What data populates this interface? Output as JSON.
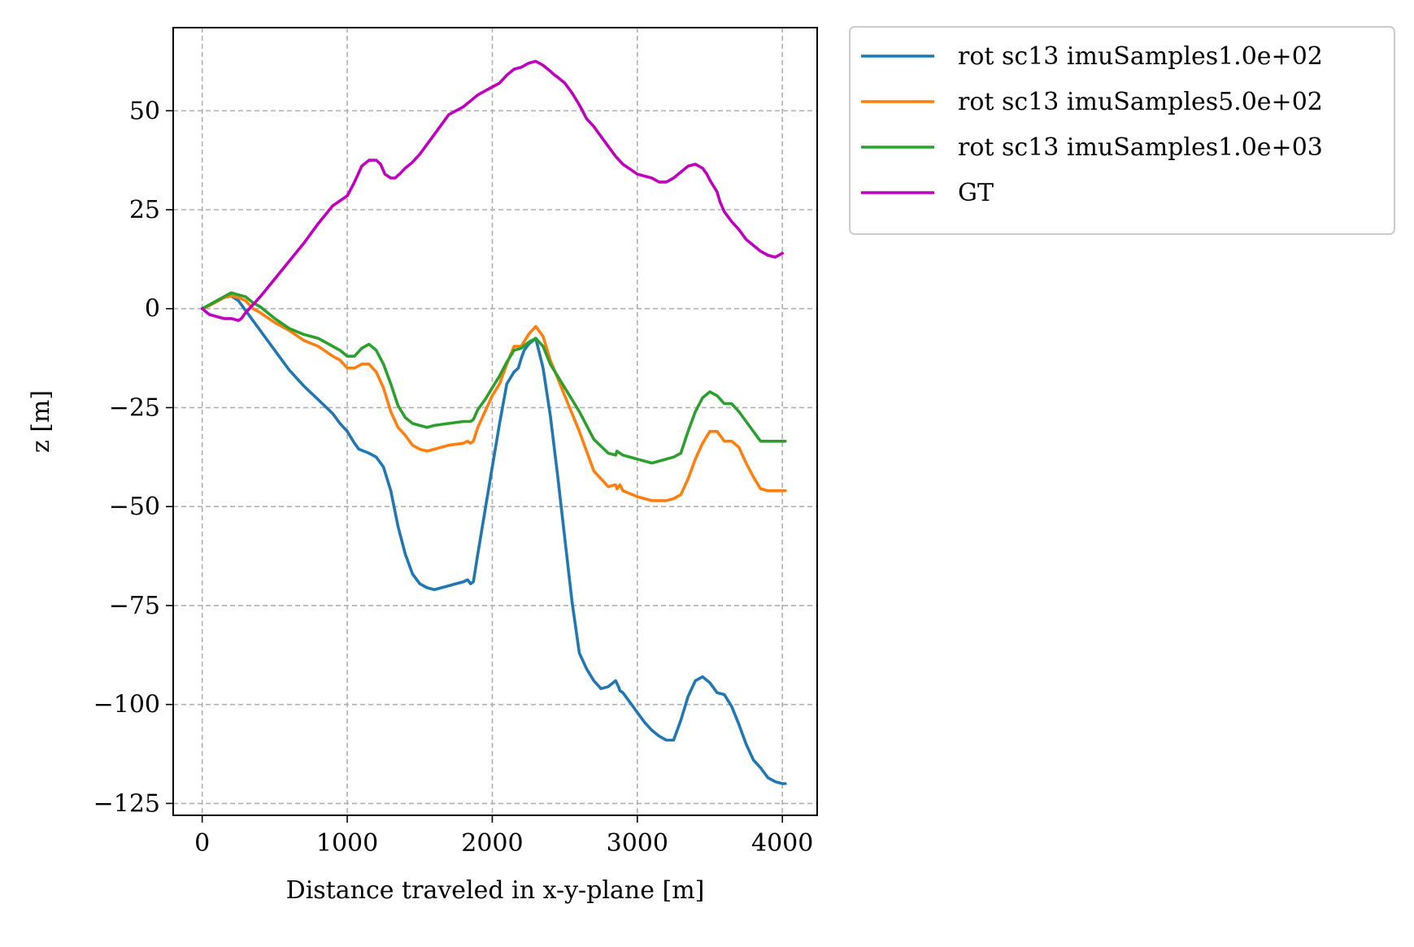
{
  "chart_data": {
    "type": "line",
    "xlabel": "Distance traveled in x-y-plane [m]",
    "ylabel": "z [m]",
    "xlim": [
      -200,
      4240
    ],
    "ylim": [
      -128,
      71
    ],
    "xticks": [
      0,
      1000,
      2000,
      3000,
      4000
    ],
    "yticks": [
      50,
      25,
      0,
      -25,
      -50,
      -75,
      -100,
      -125
    ],
    "ytick_labels": [
      "50",
      "25",
      "0",
      "−25",
      "−50",
      "−75",
      "−100",
      "−125"
    ],
    "grid": true,
    "legend_position": "outside-top-right",
    "series": [
      {
        "name": "rot sc13 imuSamples1.0e+02",
        "color": "#1f77b4",
        "x": [
          0,
          50,
          100,
          150,
          200,
          250,
          300,
          350,
          400,
          500,
          600,
          700,
          800,
          900,
          950,
          1000,
          1050,
          1080,
          1150,
          1200,
          1250,
          1300,
          1350,
          1400,
          1450,
          1500,
          1550,
          1600,
          1650,
          1700,
          1750,
          1800,
          1830,
          1850,
          1870,
          1900,
          1950,
          2000,
          2050,
          2100,
          2150,
          2180,
          2200,
          2220,
          2250,
          2300,
          2350,
          2400,
          2450,
          2500,
          2550,
          2600,
          2650,
          2700,
          2750,
          2800,
          2850,
          2870,
          2880,
          2900,
          2950,
          3000,
          3050,
          3100,
          3150,
          3200,
          3250,
          3300,
          3350,
          3400,
          3450,
          3500,
          3550,
          3600,
          3650,
          3700,
          3750,
          3800,
          3850,
          3900,
          3950,
          4000,
          4020
        ],
        "y": [
          0,
          0.8,
          1.8,
          2.8,
          3.2,
          2,
          -0.5,
          -3,
          -5.5,
          -10.5,
          -15.5,
          -19.5,
          -23,
          -26.5,
          -29,
          -31,
          -34,
          -35.5,
          -36.5,
          -37.5,
          -40,
          -46,
          -55,
          -62,
          -67,
          -69.5,
          -70.5,
          -71,
          -70.5,
          -70,
          -69.5,
          -69,
          -68.5,
          -69.5,
          -69,
          -62,
          -51,
          -40,
          -29,
          -19,
          -16,
          -15,
          -12.5,
          -10.5,
          -9,
          -7.5,
          -15,
          -27,
          -42,
          -58,
          -74,
          -87,
          -91,
          -94,
          -96,
          -95.5,
          -94,
          -95.5,
          -96.5,
          -97,
          -99.5,
          -102,
          -104.5,
          -106.5,
          -108,
          -109,
          -109,
          -104,
          -98,
          -94,
          -93,
          -94.5,
          -97,
          -97.5,
          -100.5,
          -105,
          -110,
          -114,
          -116,
          -118.5,
          -119.5,
          -120,
          -120
        ]
      },
      {
        "name": "rot sc13 imuSamples5.0e+02",
        "color": "#ff7f0e",
        "x": [
          0,
          50,
          100,
          150,
          200,
          250,
          300,
          350,
          400,
          500,
          600,
          700,
          800,
          900,
          950,
          1000,
          1050,
          1100,
          1150,
          1200,
          1250,
          1300,
          1350,
          1400,
          1450,
          1500,
          1550,
          1600,
          1700,
          1800,
          1830,
          1850,
          1870,
          1900,
          1950,
          2000,
          2050,
          2100,
          2150,
          2200,
          2250,
          2300,
          2350,
          2400,
          2500,
          2600,
          2700,
          2800,
          2850,
          2860,
          2880,
          2900,
          3000,
          3100,
          3150,
          3200,
          3250,
          3300,
          3350,
          3400,
          3450,
          3500,
          3550,
          3600,
          3650,
          3700,
          3750,
          3800,
          3850,
          3900,
          3950,
          4000,
          4020
        ],
        "y": [
          0,
          0.8,
          1.8,
          2.8,
          3.2,
          2.8,
          2,
          0,
          -1,
          -3.5,
          -5.5,
          -8,
          -9.5,
          -12,
          -13,
          -15,
          -15,
          -14,
          -14,
          -16,
          -20,
          -26,
          -30,
          -32,
          -34.5,
          -35.5,
          -36,
          -35.5,
          -34.5,
          -34,
          -33.5,
          -34,
          -33.5,
          -30,
          -26,
          -22,
          -19,
          -14,
          -9.5,
          -9.5,
          -6.5,
          -4.5,
          -7,
          -13,
          -22,
          -31,
          -41,
          -45,
          -44.5,
          -45.5,
          -44.5,
          -46,
          -47.5,
          -48.5,
          -48.5,
          -48.5,
          -48,
          -47,
          -43,
          -38,
          -34,
          -31,
          -31,
          -33.5,
          -33.5,
          -35,
          -39,
          -42.5,
          -45.5,
          -46,
          -46,
          -46,
          -46
        ]
      },
      {
        "name": "rot sc13 imuSamples1.0e+03",
        "color": "#2ca02c",
        "x": [
          0,
          50,
          100,
          150,
          200,
          250,
          300,
          350,
          400,
          500,
          600,
          700,
          800,
          900,
          950,
          1000,
          1050,
          1100,
          1150,
          1200,
          1250,
          1300,
          1350,
          1400,
          1450,
          1500,
          1550,
          1600,
          1700,
          1800,
          1830,
          1850,
          1870,
          1900,
          1950,
          2000,
          2050,
          2100,
          2150,
          2200,
          2250,
          2300,
          2350,
          2400,
          2500,
          2600,
          2700,
          2800,
          2850,
          2860,
          2880,
          2900,
          3000,
          3100,
          3150,
          3200,
          3250,
          3300,
          3350,
          3400,
          3450,
          3500,
          3550,
          3600,
          3650,
          3700,
          3750,
          3800,
          3850,
          3900,
          3950,
          4000,
          4020
        ],
        "y": [
          0,
          1,
          2,
          3,
          4,
          3.5,
          3,
          1.5,
          0.5,
          -2.5,
          -5,
          -6.5,
          -7.5,
          -9.5,
          -10.5,
          -12,
          -12,
          -10,
          -9,
          -10.5,
          -14,
          -19,
          -24.5,
          -27.5,
          -29,
          -29.5,
          -30,
          -29.5,
          -29,
          -28.5,
          -28.5,
          -28.5,
          -28,
          -25.5,
          -23,
          -20,
          -17,
          -13.5,
          -10.5,
          -10,
          -8.5,
          -7.5,
          -9.5,
          -14,
          -20,
          -26,
          -33,
          -36.5,
          -37,
          -36,
          -36.5,
          -37,
          -38,
          -39,
          -38.5,
          -38,
          -37.5,
          -36.5,
          -31,
          -26,
          -22.5,
          -21,
          -22,
          -24,
          -24,
          -26,
          -28.5,
          -31,
          -33.5,
          -33.5,
          -33.5,
          -33.5,
          -33.5
        ]
      },
      {
        "name": "GT",
        "color": "#bf00bf",
        "x": [
          0,
          50,
          100,
          150,
          200,
          250,
          270,
          300,
          350,
          400,
          500,
          600,
          700,
          800,
          900,
          1000,
          1050,
          1100,
          1150,
          1200,
          1230,
          1260,
          1300,
          1330,
          1360,
          1400,
          1450,
          1500,
          1550,
          1600,
          1700,
          1800,
          1850,
          1900,
          2000,
          2050,
          2100,
          2150,
          2200,
          2250,
          2300,
          2350,
          2400,
          2430,
          2450,
          2500,
          2550,
          2600,
          2650,
          2700,
          2750,
          2800,
          2850,
          2900,
          3000,
          3100,
          3150,
          3200,
          3250,
          3300,
          3350,
          3400,
          3450,
          3480,
          3500,
          3550,
          3570,
          3600,
          3650,
          3700,
          3750,
          3800,
          3850,
          3900,
          3950,
          4000
        ],
        "y": [
          0,
          -1.5,
          -2,
          -2.5,
          -2.5,
          -3,
          -2.5,
          -1,
          1,
          3,
          7.5,
          12,
          16.5,
          21.5,
          26,
          28.5,
          32,
          36,
          37.5,
          37.5,
          36.5,
          34,
          33,
          33,
          34,
          35.5,
          37,
          39,
          41.5,
          44,
          49,
          51,
          52.5,
          54,
          56,
          57,
          59,
          60.5,
          61,
          62,
          62.5,
          61.5,
          60,
          59,
          58.5,
          57,
          54.5,
          51.5,
          48,
          46,
          43.5,
          41,
          38.5,
          36.5,
          34,
          33,
          32,
          32,
          33,
          34.5,
          36,
          36.5,
          35.5,
          34,
          32.5,
          29.5,
          27,
          24.5,
          22,
          20,
          17.5,
          16,
          14.5,
          13.5,
          13,
          14
        ]
      }
    ]
  }
}
